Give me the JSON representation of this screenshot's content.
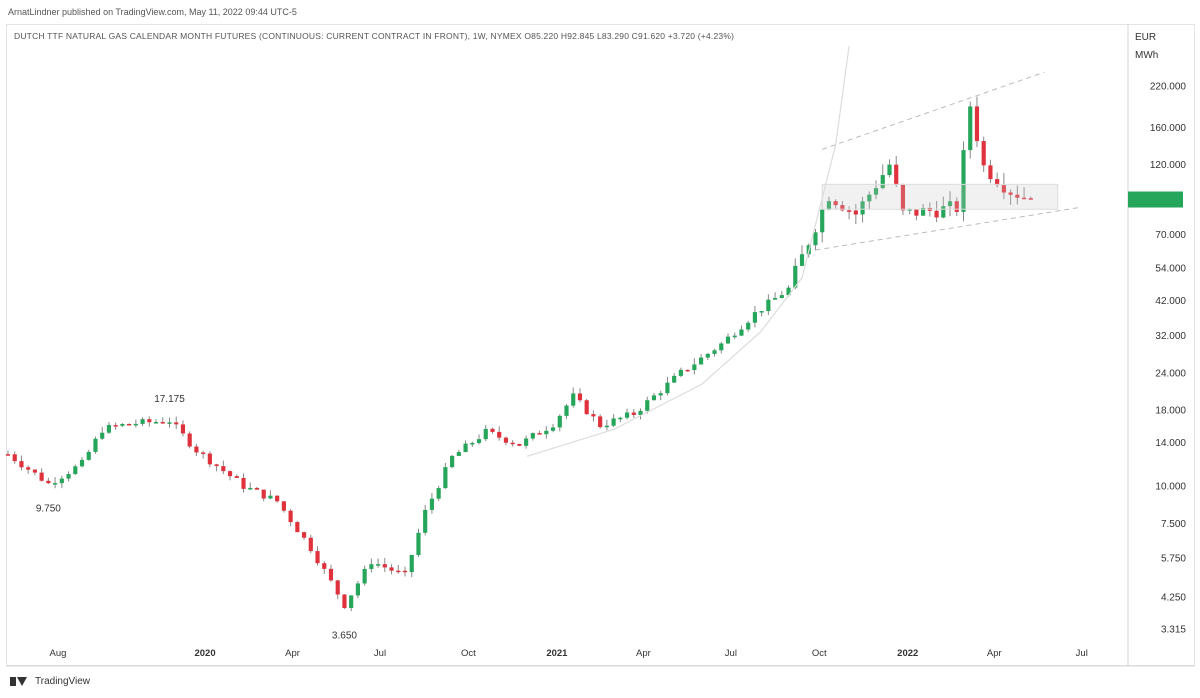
{
  "header": {
    "publisher": "ArnatLindner published on TradingView.com, May 11, 2022 09:44 UTC-5",
    "symbol": "DUTCH TTF NATURAL GAS CALENDAR MONTH FUTURES (CONTINUOUS: CURRENT CONTRACT IN FRONT), 1W, NYMEX O85.220 H92.845 L83.290 C91.620 +3.720 (+4.23%)"
  },
  "price_axis": {
    "unit_line1": "EUR",
    "unit_line2": "MWh",
    "current_price_color": "#26a65b"
  },
  "footer": {
    "brand": "TradingView"
  },
  "colors": {
    "up": "#26a65b",
    "down": "#e0323d",
    "wick": "#888888",
    "annotation": "#bbbbbb"
  },
  "chart_data": {
    "type": "candlestick",
    "y_scale": "log",
    "ylim": [
      3.0,
      300
    ],
    "xlim": [
      "2019-06-10",
      "2022-08-15"
    ],
    "y_ticks": [
      "220.000",
      "160.000",
      "120.000",
      "70.000",
      "54.000",
      "42.000",
      "32.000",
      "24.000",
      "18.000",
      "14.000",
      "10.000",
      "7.500",
      "5.750",
      "4.250",
      "3.315"
    ],
    "x_ticks": [
      {
        "label": "Aug",
        "date": "2019-08-01"
      },
      {
        "label": "2020",
        "date": "2020-01-01"
      },
      {
        "label": "Apr",
        "date": "2020-04-01"
      },
      {
        "label": "Jul",
        "date": "2020-07-01"
      },
      {
        "label": "Oct",
        "date": "2020-10-01"
      },
      {
        "label": "2021",
        "date": "2021-01-01"
      },
      {
        "label": "Apr",
        "date": "2021-04-01"
      },
      {
        "label": "Jul",
        "date": "2021-07-01"
      },
      {
        "label": "Oct",
        "date": "2021-10-01"
      },
      {
        "label": "2022",
        "date": "2022-01-01"
      },
      {
        "label": "Apr",
        "date": "2022-04-01"
      },
      {
        "label": "Jul",
        "date": "2022-07-01"
      }
    ],
    "annotations": [
      {
        "text": "9.750",
        "date": "2019-07-22",
        "value": 9.75,
        "position": "below"
      },
      {
        "text": "17.175",
        "date": "2019-11-25",
        "value": 17.175,
        "position": "above"
      },
      {
        "text": "3.650",
        "date": "2020-05-25",
        "value": 3.65,
        "position": "below"
      }
    ],
    "waypoints": [
      [
        "2019-06-10",
        12.8
      ],
      [
        "2019-07-22",
        10.2
      ],
      [
        "2019-08-26",
        11.9
      ],
      [
        "2019-09-16",
        15.5
      ],
      [
        "2019-10-14",
        16.2
      ],
      [
        "2019-11-25",
        16.6
      ],
      [
        "2019-12-23",
        13.2
      ],
      [
        "2020-02-10",
        10.0
      ],
      [
        "2020-03-16",
        8.9
      ],
      [
        "2020-04-20",
        6.2
      ],
      [
        "2020-05-25",
        4.0
      ],
      [
        "2020-06-22",
        5.6
      ],
      [
        "2020-07-27",
        5.0
      ],
      [
        "2020-08-17",
        8.2
      ],
      [
        "2020-09-14",
        12.5
      ],
      [
        "2020-10-19",
        15.2
      ],
      [
        "2020-11-23",
        13.8
      ],
      [
        "2020-12-28",
        16.2
      ],
      [
        "2021-01-18",
        20.0
      ],
      [
        "2021-02-15",
        16.0
      ],
      [
        "2021-03-22",
        17.5
      ],
      [
        "2021-05-10",
        24.0
      ],
      [
        "2021-06-21",
        30.0
      ],
      [
        "2021-07-26",
        38.0
      ],
      [
        "2021-08-30",
        46.0
      ],
      [
        "2021-09-27",
        75.0
      ],
      [
        "2021-10-11",
        95.0
      ],
      [
        "2021-11-08",
        82.0
      ],
      [
        "2021-12-13",
        120.0
      ],
      [
        "2021-12-27",
        82.0
      ],
      [
        "2022-01-24",
        84.0
      ],
      [
        "2022-02-21",
        86.0
      ],
      [
        "2022-03-07",
        190.0
      ],
      [
        "2022-03-21",
        118.0
      ],
      [
        "2022-04-18",
        98.0
      ],
      [
        "2022-05-09",
        91.62
      ]
    ],
    "last_price": 91.62
  }
}
